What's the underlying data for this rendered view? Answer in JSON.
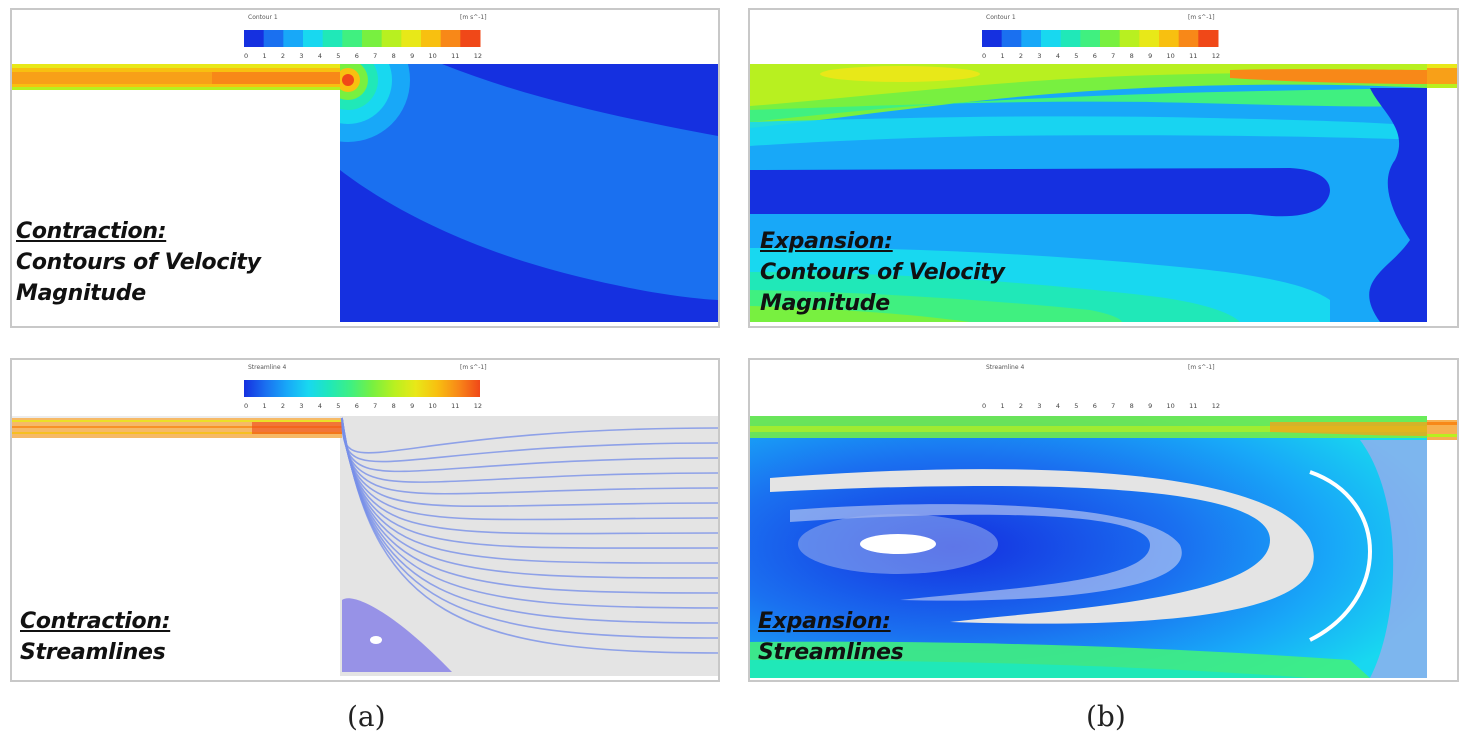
{
  "colorbar": {
    "ticks": [
      "0",
      "1",
      "2",
      "3",
      "4",
      "5",
      "6",
      "7",
      "8",
      "9",
      "10",
      "11",
      "12"
    ],
    "unit": "[m s^-1]",
    "contour_title": "Contour 1",
    "streamline_title": "Streamline 4",
    "colors": [
      "#1530e0",
      "#1a70f0",
      "#18a8f8",
      "#18d8f0",
      "#20e8b8",
      "#40f080",
      "#78f040",
      "#b8f020",
      "#e8e818",
      "#f8c010",
      "#f88818",
      "#f04818"
    ]
  },
  "panels": {
    "a_top": {
      "heading": "Contraction:",
      "line1": "Contours of Velocity",
      "line2": "Magnitude"
    },
    "b_top": {
      "heading": "Expansion:",
      "line1": "Contours of Velocity",
      "line2": "Magnitude"
    },
    "a_bottom": {
      "heading": "Contraction:",
      "line1": "Streamlines"
    },
    "b_bottom": {
      "heading": "Expansion:",
      "line1": "Streamlines"
    }
  },
  "captions": {
    "a": "(a)",
    "b": "(b)"
  }
}
